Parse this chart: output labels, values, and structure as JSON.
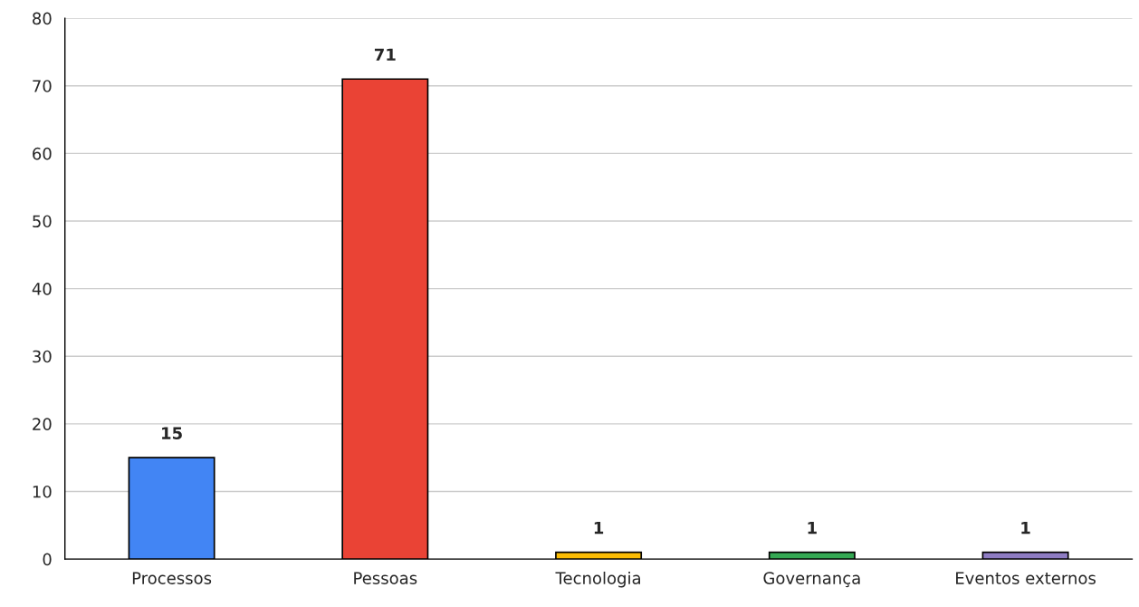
{
  "chart_data": {
    "type": "bar",
    "categories": [
      "Processos",
      "Pessoas",
      "Tecnologia",
      "Governança",
      "Eventos externos"
    ],
    "values": [
      15,
      71,
      1,
      1,
      1
    ],
    "colors": [
      "#4285f4",
      "#ea4335",
      "#fbbc04",
      "#34a853",
      "#8e7cc3"
    ],
    "ylim": [
      0,
      80
    ],
    "yticks": [
      0,
      10,
      20,
      30,
      40,
      50,
      60,
      70,
      80
    ],
    "grid": "y",
    "data_labels": true,
    "legend": false
  }
}
